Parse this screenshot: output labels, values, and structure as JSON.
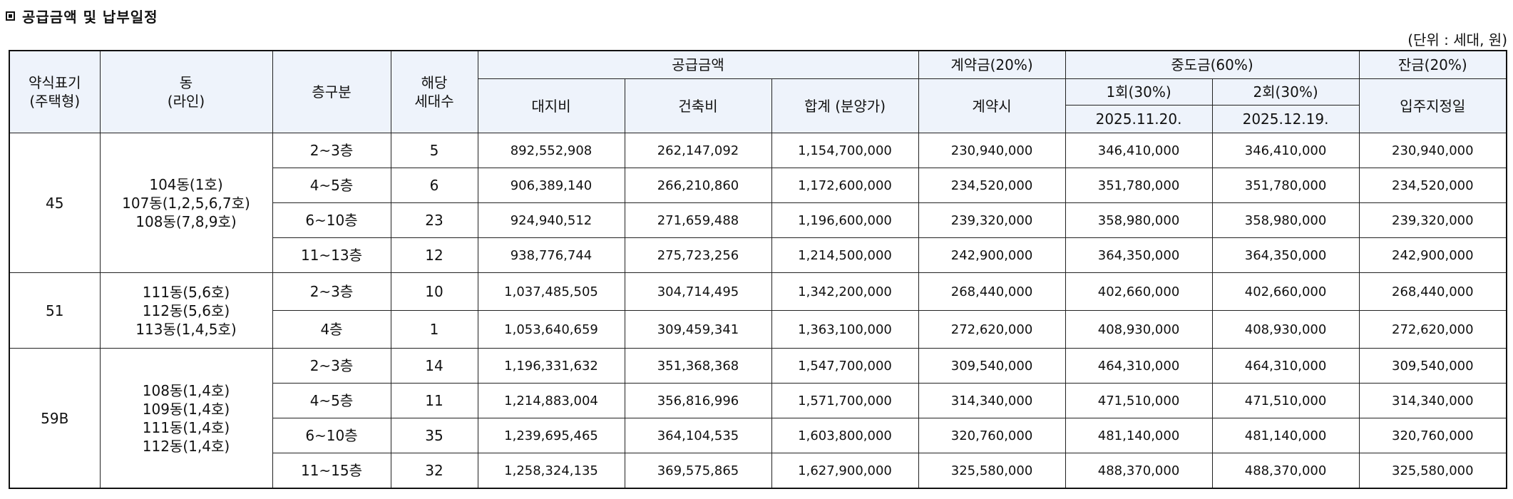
{
  "title": "공급금액 및 납부일정",
  "unit_note": "(단위 : 세대, 원)",
  "headers": {
    "type": [
      "약식표기",
      "(주택형)"
    ],
    "dong": [
      "동",
      "(라인)"
    ],
    "floor": "층구분",
    "units": [
      "해당",
      "세대수"
    ],
    "supply_group": "공급금액",
    "land": "대지비",
    "building": "건축비",
    "total": "합계 (분양가)",
    "contract_group": "계약금(20%)",
    "contract_at": "계약시",
    "middle_group": "중도금(60%)",
    "middle_1": "1회(30%)",
    "middle_1_date": "2025.11.20.",
    "middle_2": "2회(30%)",
    "middle_2_date": "2025.12.19.",
    "balance_group": "잔금(20%)",
    "balance_at": "입주지정일"
  },
  "groups": [
    {
      "type": "45",
      "dong": [
        "104동(1호)",
        "107동(1,2,5,6,7호)",
        "108동(7,8,9호)"
      ],
      "rows": [
        {
          "floor": "2~3층",
          "units": "5",
          "land": "892,552,908",
          "building": "262,147,092",
          "total": "1,154,700,000",
          "contract": "230,940,000",
          "mid1": "346,410,000",
          "mid2": "346,410,000",
          "balance": "230,940,000"
        },
        {
          "floor": "4~5층",
          "units": "6",
          "land": "906,389,140",
          "building": "266,210,860",
          "total": "1,172,600,000",
          "contract": "234,520,000",
          "mid1": "351,780,000",
          "mid2": "351,780,000",
          "balance": "234,520,000"
        },
        {
          "floor": "6~10층",
          "units": "23",
          "land": "924,940,512",
          "building": "271,659,488",
          "total": "1,196,600,000",
          "contract": "239,320,000",
          "mid1": "358,980,000",
          "mid2": "358,980,000",
          "balance": "239,320,000"
        },
        {
          "floor": "11~13층",
          "units": "12",
          "land": "938,776,744",
          "building": "275,723,256",
          "total": "1,214,500,000",
          "contract": "242,900,000",
          "mid1": "364,350,000",
          "mid2": "364,350,000",
          "balance": "242,900,000"
        }
      ]
    },
    {
      "type": "51",
      "dong": [
        "111동(5,6호)",
        "112동(5,6호)",
        "113동(1,4,5호)"
      ],
      "rows": [
        {
          "floor": "2~3층",
          "units": "10",
          "land": "1,037,485,505",
          "building": "304,714,495",
          "total": "1,342,200,000",
          "contract": "268,440,000",
          "mid1": "402,660,000",
          "mid2": "402,660,000",
          "balance": "268,440,000"
        },
        {
          "floor": "4층",
          "units": "1",
          "land": "1,053,640,659",
          "building": "309,459,341",
          "total": "1,363,100,000",
          "contract": "272,620,000",
          "mid1": "408,930,000",
          "mid2": "408,930,000",
          "balance": "272,620,000"
        }
      ]
    },
    {
      "type": "59B",
      "dong": [
        "108동(1,4호)",
        "109동(1,4호)",
        "111동(1,4호)",
        "112동(1,4호)"
      ],
      "rows": [
        {
          "floor": "2~3층",
          "units": "14",
          "land": "1,196,331,632",
          "building": "351,368,368",
          "total": "1,547,700,000",
          "contract": "309,540,000",
          "mid1": "464,310,000",
          "mid2": "464,310,000",
          "balance": "309,540,000"
        },
        {
          "floor": "4~5층",
          "units": "11",
          "land": "1,214,883,004",
          "building": "356,816,996",
          "total": "1,571,700,000",
          "contract": "314,340,000",
          "mid1": "471,510,000",
          "mid2": "471,510,000",
          "balance": "314,340,000"
        },
        {
          "floor": "6~10층",
          "units": "35",
          "land": "1,239,695,465",
          "building": "364,104,535",
          "total": "1,603,800,000",
          "contract": "320,760,000",
          "mid1": "481,140,000",
          "mid2": "481,140,000",
          "balance": "320,760,000"
        },
        {
          "floor": "11~15층",
          "units": "32",
          "land": "1,258,324,135",
          "building": "369,575,865",
          "total": "1,627,900,000",
          "contract": "325,580,000",
          "mid1": "488,370,000",
          "mid2": "488,370,000",
          "balance": "325,580,000"
        }
      ]
    }
  ]
}
